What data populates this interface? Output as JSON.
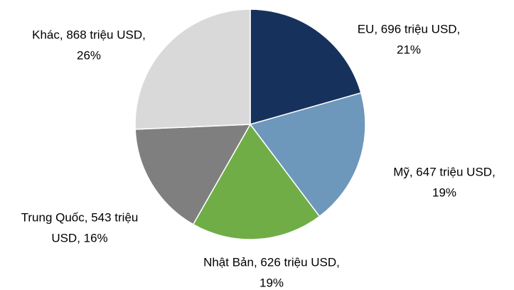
{
  "chart_data": {
    "type": "pie",
    "values": [
      696,
      647,
      626,
      543,
      868
    ],
    "colors": [
      "#16325c",
      "#6d97bb",
      "#70ad47",
      "#7f7f7f",
      "#d9d9d9"
    ],
    "value_labels": [
      [
        "EU, 696 triệu USD,",
        "21%"
      ],
      [
        "Mỹ, 647 triệu USD,",
        "19%"
      ],
      [
        "Nhật Bản, 626 triệu USD,",
        "19%"
      ],
      [
        "Trung Quốc, 543 triệu",
        "USD, 16%"
      ],
      [
        "Khác, 868 triệu USD,",
        "26%"
      ]
    ]
  }
}
